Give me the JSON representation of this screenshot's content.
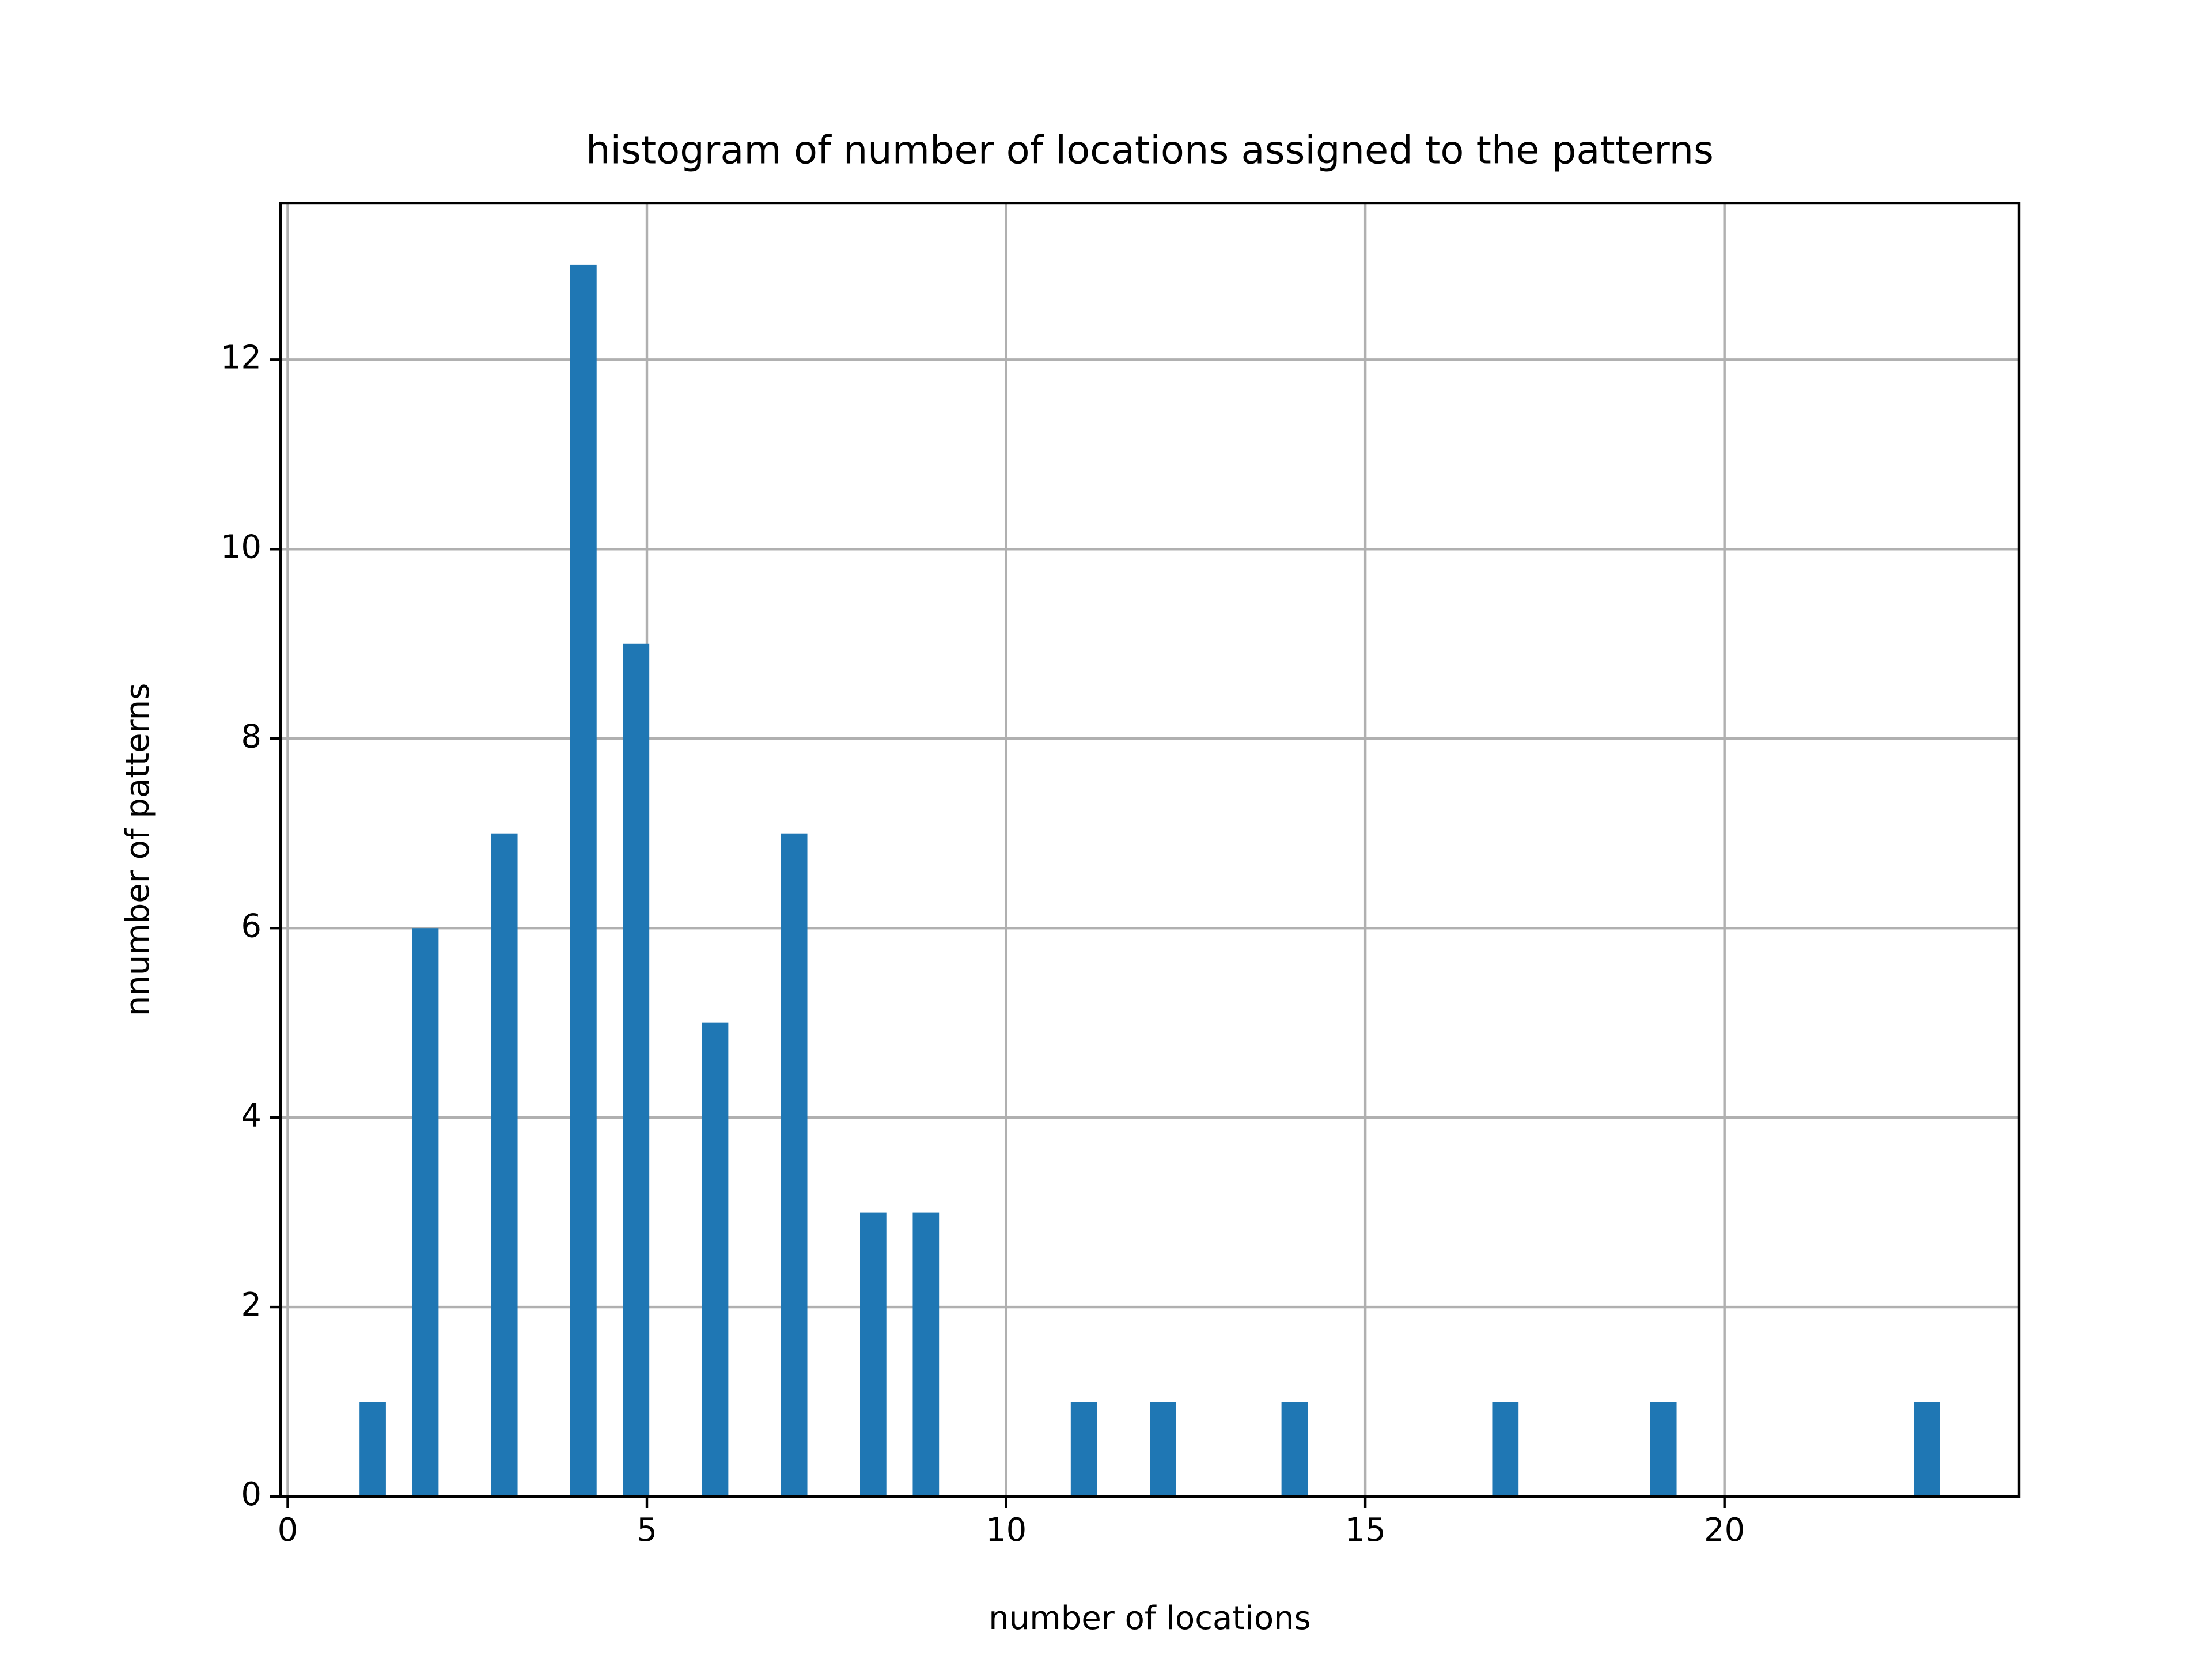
{
  "chart_data": {
    "type": "histogram",
    "title": "histogram of number of locations assigned to the patterns",
    "xlabel": "number of locations",
    "ylabel": "nnumber of patterns",
    "bins": [
      1,
      1.3667,
      1.7333,
      2.1,
      2.4667,
      2.8333,
      3.2,
      3.5667,
      3.9333,
      4.3,
      4.6667,
      5.0333,
      5.4,
      5.7667,
      6.1333,
      6.5,
      6.8667,
      7.2333,
      7.6,
      7.9667,
      8.3333,
      8.7,
      9.0667,
      9.4333,
      9.8,
      10.1667,
      10.5333,
      10.9,
      11.2667,
      11.6333,
      12,
      12.3667,
      12.7333,
      13.1,
      13.4667,
      13.8333,
      14.2,
      14.5667,
      14.9333,
      15.3,
      15.6667,
      16.0333,
      16.4,
      16.7667,
      17.1333,
      17.5,
      17.8667,
      18.2333,
      18.6,
      18.9667,
      19.3333,
      19.7,
      20.0667,
      20.4333,
      20.8,
      21.1667,
      21.5333,
      21.9,
      22.2667,
      22.6333,
      23
    ],
    "values": [
      1,
      0,
      6,
      0,
      0,
      7,
      0,
      0,
      13,
      0,
      9,
      0,
      0,
      5,
      0,
      0,
      7,
      0,
      0,
      3,
      0,
      3,
      0,
      0,
      0,
      0,
      0,
      1,
      0,
      0,
      1,
      0,
      0,
      0,
      0,
      1,
      0,
      0,
      0,
      0,
      0,
      0,
      0,
      1,
      0,
      0,
      0,
      0,
      0,
      1,
      0,
      0,
      0,
      0,
      0,
      0,
      0,
      0,
      0,
      1
    ],
    "color": "#1f77b4",
    "xlim": [
      -0.1,
      24.1
    ],
    "xticks": [
      0,
      5,
      10,
      15,
      20
    ],
    "ylim": [
      0,
      13.65
    ],
    "yticks": [
      0,
      2,
      4,
      6,
      8,
      10,
      12
    ],
    "grid": true
  }
}
